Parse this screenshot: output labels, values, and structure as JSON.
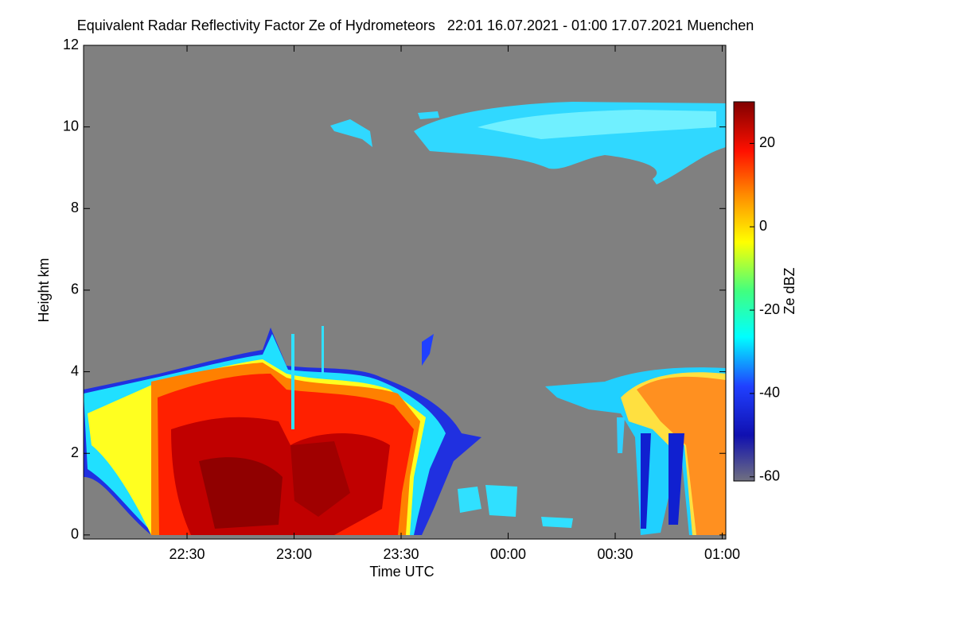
{
  "chart_data": {
    "type": "heatmap",
    "title": "Equivalent Radar Reflectivity Factor Ze of Hydrometeors   22:01 16.07.2021 - 01:00 17.07.2021 Muenchen",
    "xlabel": "Time UTC",
    "ylabel": "Height km",
    "xlim": [
      1,
      181
    ],
    "xticks": [
      {
        "value": 30,
        "label": "22:30"
      },
      {
        "value": 60,
        "label": "23:00"
      },
      {
        "value": 90,
        "label": "23:30"
      },
      {
        "value": 120,
        "label": "00:00"
      },
      {
        "value": 150,
        "label": "00:30"
      },
      {
        "value": 180,
        "label": "01:00"
      }
    ],
    "ylim": [
      -0.1,
      12
    ],
    "yticks": [
      0,
      2,
      4,
      6,
      8,
      10,
      12
    ],
    "colorbar": {
      "label": "Ze dBZ",
      "lim": [
        -61,
        30
      ],
      "ticks": [
        -60,
        -40,
        -20,
        0,
        20
      ]
    }
  }
}
